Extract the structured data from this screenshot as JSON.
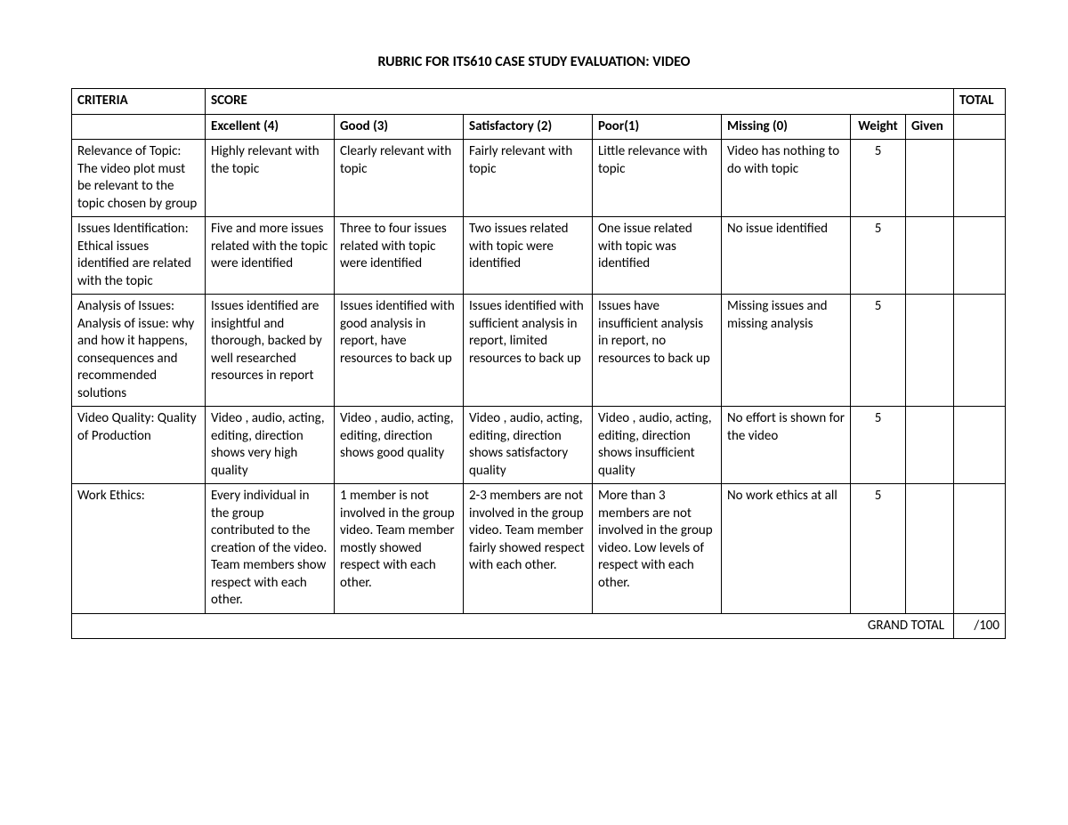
{
  "title": "RUBRIC FOR ITS610 CASE STUDY EVALUATION: VIDEO",
  "headers": {
    "criteria": "CRITERIA",
    "score": "SCORE",
    "total": "TOTAL",
    "excellent": "Excellent (4)",
    "good": "Good (3)",
    "satisfactory": "Satisfactory (2)",
    "poor": "Poor(1)",
    "missing": "Missing (0)",
    "weight": "Weight",
    "given": "Given"
  },
  "rows": [
    {
      "criteria": "Relevance of Topic: The video plot must be relevant to the topic chosen by group",
      "excellent": "Highly relevant with the topic",
      "good": "Clearly relevant with topic",
      "satisfactory": "Fairly relevant with topic",
      "poor": "Little relevance with topic",
      "missing": "Video has nothing to do with topic",
      "weight": "5",
      "given": "",
      "total": ""
    },
    {
      "criteria": "Issues Identification: Ethical issues identified are related with the topic",
      "excellent": "Five and more issues  related with the topic were identified",
      "good": "Three to four issues related with topic were identified",
      "satisfactory": "Two issues related with topic were identified",
      "poor": "One issue related with topic was identified",
      "missing": "No issue identified",
      "weight": "5",
      "given": "",
      "total": ""
    },
    {
      "criteria": "Analysis of Issues: Analysis of issue: why and how it happens, consequences and recommended solutions",
      "excellent": "Issues identified are insightful and thorough, backed by well researched resources in report",
      "good": "Issues identified with good analysis in report, have resources to back up",
      "satisfactory": "Issues identified with sufficient analysis in report, limited resources to back up",
      "poor": "Issues have insufficient analysis in report, no resources to back up",
      "missing": "Missing issues and missing analysis",
      "weight": "5",
      "given": "",
      "total": ""
    },
    {
      "criteria": "Video Quality: Quality of Production",
      "excellent": "Video , audio, acting, editing, direction shows very high quality",
      "good": "Video , audio, acting, editing, direction shows good quality",
      "satisfactory": "Video , audio, acting, editing, direction shows satisfactory quality",
      "poor": "Video , audio, acting, editing, direction shows insufficient quality",
      "missing": "No effort is shown for the video",
      "weight": "5",
      "given": "",
      "total": ""
    },
    {
      "criteria": "Work Ethics:",
      "excellent": "Every individual in the group contributed to the creation of the video. Team members show respect with each other.",
      "good": "1 member is not involved in the group video. Team member mostly showed respect with each other.",
      "satisfactory": "2-3 members are not involved in the group video. Team member fairly showed respect with each other.",
      "poor": "More than 3 members are not involved in the group video. Low levels of respect with each other.",
      "missing": "No work ethics at all",
      "weight": "5",
      "given": "",
      "total": ""
    }
  ],
  "footer": {
    "grand_total_label": "GRAND TOTAL",
    "grand_total_value": "/100"
  }
}
